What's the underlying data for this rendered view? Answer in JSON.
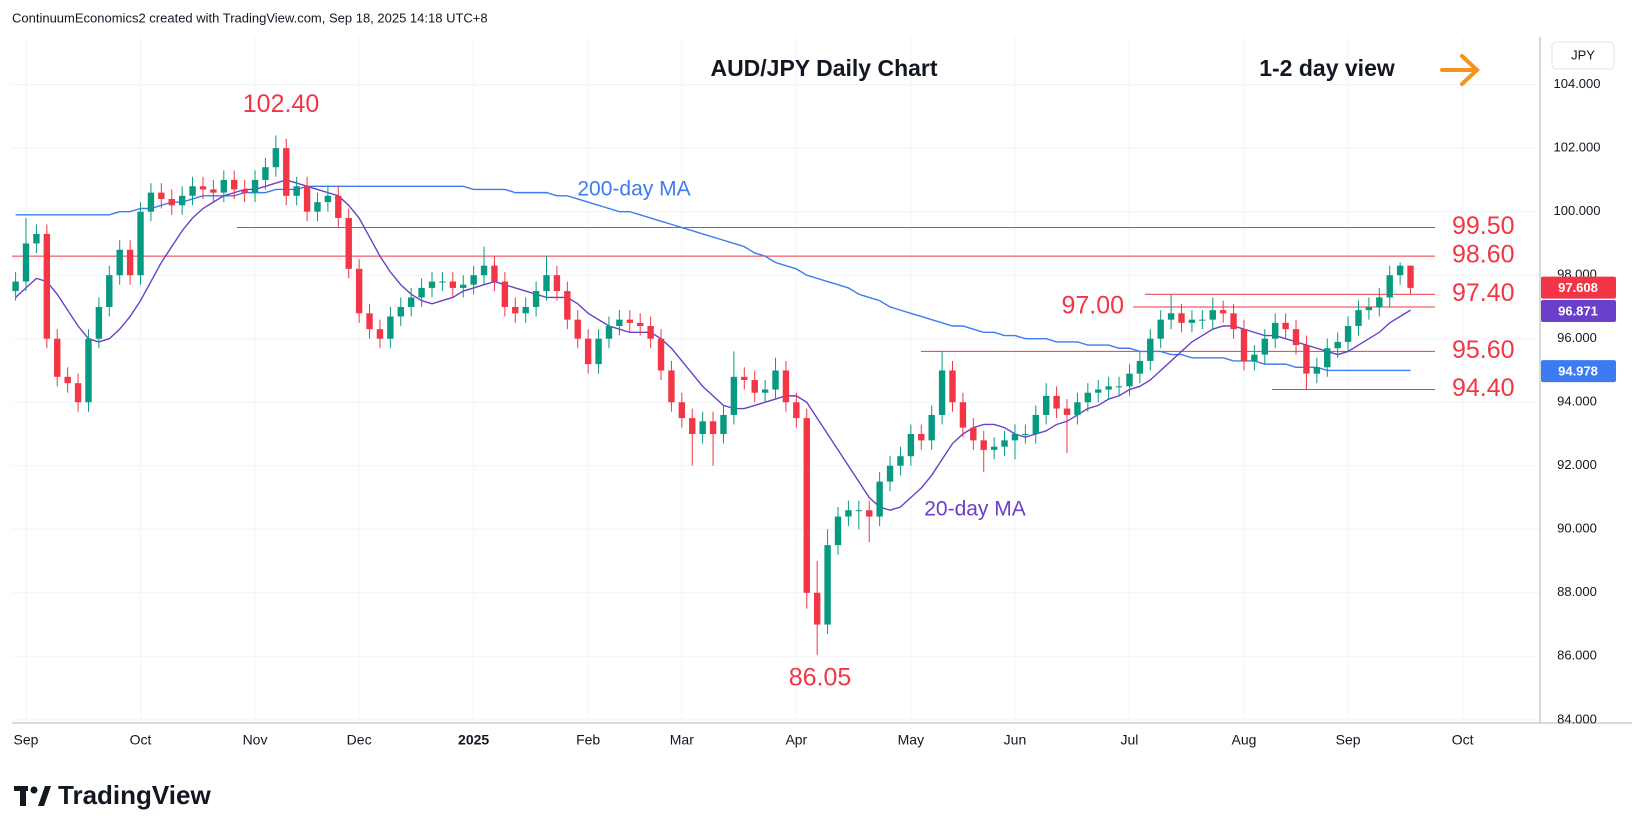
{
  "header": {
    "attribution": "ContinuumEconomics2 created with TradingView.com, Sep 18, 2025 14:18 UTC+8"
  },
  "footer": {
    "brand": "TradingView"
  },
  "chart_data": {
    "type": "candlestick",
    "title": "AUD/JPY Daily Chart",
    "subtitle": "1-2 day view",
    "ylabel": "JPY",
    "up_color": "#089981",
    "down_color": "#f23645",
    "grid": true,
    "ylim": [
      83.9,
      105.5
    ],
    "yticks": [
      {
        "value": 84,
        "label": "84.000"
      },
      {
        "value": 86,
        "label": "86.000"
      },
      {
        "value": 88,
        "label": "88.000"
      },
      {
        "value": 90,
        "label": "90.000"
      },
      {
        "value": 92,
        "label": "92.000"
      },
      {
        "value": 94,
        "label": "94.000"
      },
      {
        "value": 96,
        "label": "96.000"
      },
      {
        "value": 98,
        "label": "98.000"
      },
      {
        "value": 100,
        "label": "100.000"
      },
      {
        "value": 102,
        "label": "102.000"
      },
      {
        "value": 104,
        "label": "104.000"
      }
    ],
    "categories": [
      null,
      "Sep",
      null,
      null,
      null,
      null,
      null,
      null,
      null,
      null,
      null,
      null,
      "Oct",
      null,
      null,
      null,
      null,
      null,
      null,
      null,
      null,
      null,
      null,
      "Nov",
      null,
      null,
      null,
      null,
      null,
      null,
      null,
      null,
      null,
      "Dec",
      null,
      null,
      null,
      null,
      null,
      null,
      null,
      null,
      null,
      null,
      "2025",
      null,
      null,
      null,
      null,
      null,
      null,
      null,
      null,
      null,
      null,
      "Feb",
      null,
      null,
      null,
      null,
      null,
      null,
      null,
      null,
      "Mar",
      null,
      null,
      null,
      null,
      null,
      null,
      null,
      null,
      null,
      null,
      "Apr",
      null,
      null,
      null,
      null,
      null,
      null,
      null,
      null,
      null,
      null,
      "May",
      null,
      null,
      null,
      null,
      null,
      null,
      null,
      null,
      null,
      "Jun",
      null,
      null,
      null,
      null,
      null,
      null,
      null,
      null,
      null,
      null,
      "Jul",
      null,
      null,
      null,
      null,
      null,
      null,
      null,
      null,
      null,
      null,
      "Aug",
      null,
      null,
      null,
      null,
      null,
      null,
      null,
      null,
      null,
      "Sep",
      null,
      null,
      null,
      null,
      null,
      null,
      null,
      null,
      null,
      null,
      "Oct",
      null,
      null,
      null,
      null,
      null,
      null,
      null
    ],
    "open": [
      97.5,
      97.8,
      99.0,
      99.3,
      96.0,
      94.8,
      94.6,
      94.0,
      96.0,
      97.0,
      98.0,
      98.8,
      98.0,
      100.0,
      100.6,
      100.4,
      100.2,
      100.5,
      100.8,
      100.7,
      100.6,
      101.0,
      100.7,
      100.6,
      101.0,
      101.4,
      102.0,
      100.5,
      100.8,
      100.0,
      100.3,
      100.5,
      99.8,
      98.2,
      96.8,
      96.3,
      96.0,
      96.7,
      97.0,
      97.3,
      97.6,
      97.8,
      97.8,
      97.6,
      97.7,
      98.0,
      98.3,
      97.8,
      97.0,
      96.8,
      97.0,
      97.5,
      98.0,
      97.5,
      96.6,
      96.0,
      95.2,
      96.0,
      96.4,
      96.6,
      96.5,
      96.4,
      96.0,
      95.0,
      94.0,
      93.5,
      93.0,
      93.4,
      93.0,
      93.6,
      94.8,
      94.7,
      94.3,
      94.4,
      95.0,
      94.0,
      93.5,
      88.0,
      87.0,
      89.5,
      90.4,
      90.6,
      90.6,
      90.4,
      91.5,
      92.0,
      92.3,
      93.0,
      92.8,
      93.6,
      95.0,
      94.0,
      93.2,
      92.8,
      92.5,
      92.6,
      92.8,
      93.0,
      93.0,
      93.6,
      94.2,
      93.8,
      93.6,
      94.0,
      94.3,
      94.4,
      94.5,
      94.5,
      94.9,
      95.3,
      96.0,
      96.6,
      96.8,
      96.5,
      96.6,
      96.6,
      96.9,
      96.8,
      96.3,
      95.3,
      95.5,
      96.0,
      96.5,
      96.3,
      95.8,
      94.9,
      95.1,
      95.7,
      95.9,
      96.4,
      96.9,
      97.0,
      97.3,
      98.0,
      98.3,
      null,
      null,
      null,
      null,
      null,
      null,
      null,
      null,
      null,
      null,
      null,
      null
    ],
    "high": [
      98.1,
      99.8,
      99.6,
      99.6,
      96.3,
      95.1,
      94.9,
      96.3,
      97.3,
      98.3,
      99.1,
      99.1,
      100.3,
      100.9,
      100.9,
      100.7,
      100.8,
      101.1,
      101.1,
      101.0,
      101.3,
      101.3,
      101.0,
      101.3,
      101.7,
      102.4,
      102.3,
      101.1,
      101.1,
      100.6,
      100.8,
      100.8,
      100.1,
      98.5,
      97.1,
      96.6,
      97.0,
      97.3,
      97.6,
      97.9,
      98.1,
      98.1,
      98.1,
      98.0,
      98.3,
      98.9,
      98.6,
      98.1,
      97.3,
      97.3,
      97.8,
      98.6,
      98.3,
      97.8,
      96.9,
      96.3,
      96.3,
      96.7,
      96.9,
      96.9,
      96.8,
      96.7,
      96.3,
      95.3,
      94.3,
      93.8,
      93.7,
      93.7,
      93.9,
      95.6,
      95.1,
      95.0,
      94.7,
      95.4,
      95.3,
      94.3,
      93.8,
      89.0,
      90.0,
      90.7,
      90.9,
      90.9,
      90.9,
      91.8,
      92.3,
      92.6,
      93.3,
      93.3,
      93.9,
      95.6,
      95.3,
      94.3,
      93.5,
      93.1,
      92.9,
      93.1,
      93.3,
      93.3,
      93.9,
      94.6,
      94.5,
      94.1,
      94.3,
      94.6,
      94.7,
      94.8,
      94.8,
      95.2,
      95.6,
      96.3,
      96.9,
      97.4,
      97.1,
      96.9,
      96.9,
      97.3,
      97.2,
      97.1,
      96.6,
      95.8,
      96.3,
      96.8,
      96.8,
      96.6,
      96.1,
      95.4,
      96.0,
      96.2,
      96.7,
      97.2,
      97.3,
      97.6,
      98.3,
      98.4,
      98.3,
      null,
      null,
      null,
      null,
      null,
      null,
      null,
      null,
      null,
      null,
      null,
      null
    ],
    "low": [
      97.2,
      97.5,
      98.7,
      95.7,
      94.5,
      94.3,
      93.7,
      93.7,
      95.7,
      96.7,
      97.7,
      97.7,
      97.7,
      99.7,
      100.1,
      99.9,
      99.9,
      100.2,
      100.4,
      100.3,
      100.3,
      100.4,
      100.3,
      100.3,
      100.7,
      101.1,
      100.2,
      100.2,
      99.7,
      99.7,
      100.0,
      99.5,
      97.9,
      96.5,
      96.0,
      95.7,
      95.7,
      96.4,
      96.7,
      97.0,
      97.3,
      97.5,
      97.3,
      97.3,
      97.4,
      97.7,
      97.5,
      96.7,
      96.5,
      96.5,
      96.7,
      97.2,
      97.2,
      96.3,
      95.7,
      94.9,
      94.9,
      95.7,
      96.1,
      96.2,
      96.1,
      95.7,
      94.7,
      93.7,
      93.2,
      92.0,
      92.7,
      92.0,
      92.7,
      93.3,
      94.4,
      94.0,
      94.0,
      94.1,
      93.7,
      93.2,
      87.5,
      86.05,
      86.7,
      89.2,
      90.1,
      90.0,
      89.6,
      90.1,
      91.2,
      91.7,
      92.0,
      92.5,
      92.5,
      93.3,
      93.7,
      92.9,
      92.5,
      91.8,
      92.2,
      92.3,
      92.2,
      92.7,
      92.7,
      93.3,
      93.5,
      92.4,
      93.3,
      93.7,
      94.0,
      94.1,
      94.2,
      94.2,
      94.6,
      95.0,
      95.7,
      96.3,
      96.2,
      96.2,
      96.3,
      96.3,
      96.5,
      96.0,
      95.0,
      95.0,
      95.2,
      95.7,
      96.0,
      95.5,
      94.4,
      94.6,
      94.8,
      95.4,
      95.6,
      96.1,
      96.6,
      96.7,
      97.0,
      97.7,
      97.4,
      null,
      null,
      null,
      null,
      null,
      null,
      null,
      null,
      null,
      null,
      null,
      null
    ],
    "close": [
      97.8,
      99.0,
      99.3,
      96.0,
      94.8,
      94.6,
      94.0,
      96.0,
      97.0,
      98.0,
      98.8,
      98.0,
      100.0,
      100.6,
      100.4,
      100.2,
      100.5,
      100.8,
      100.7,
      100.6,
      101.0,
      100.7,
      100.6,
      101.0,
      101.4,
      102.0,
      100.5,
      100.8,
      100.0,
      100.3,
      100.5,
      99.8,
      98.2,
      96.8,
      96.3,
      96.0,
      96.7,
      97.0,
      97.3,
      97.6,
      97.8,
      97.8,
      97.6,
      97.7,
      98.0,
      98.3,
      97.8,
      97.0,
      96.8,
      97.0,
      97.5,
      98.0,
      97.5,
      96.6,
      96.0,
      95.2,
      96.0,
      96.4,
      96.6,
      96.5,
      96.4,
      96.0,
      95.0,
      94.0,
      93.5,
      93.0,
      93.4,
      93.0,
      93.6,
      94.8,
      94.7,
      94.3,
      94.4,
      95.0,
      94.0,
      93.5,
      88.0,
      87.0,
      89.5,
      90.4,
      90.6,
      90.6,
      90.4,
      91.5,
      92.0,
      92.3,
      93.0,
      92.8,
      93.6,
      95.0,
      94.0,
      93.2,
      92.8,
      92.5,
      92.6,
      92.8,
      93.0,
      93.0,
      93.6,
      94.2,
      93.8,
      93.6,
      94.0,
      94.3,
      94.4,
      94.5,
      94.5,
      94.9,
      95.3,
      96.0,
      96.6,
      96.8,
      96.5,
      96.6,
      96.6,
      96.9,
      96.8,
      96.3,
      95.3,
      95.5,
      96.0,
      96.5,
      96.3,
      95.8,
      94.9,
      95.1,
      95.7,
      95.9,
      96.4,
      96.9,
      97.0,
      97.3,
      98.0,
      98.3,
      97.6,
      null,
      null,
      null,
      null,
      null,
      null,
      null,
      null,
      null,
      null,
      null,
      null
    ],
    "lines": [
      {
        "name": "200-day MA",
        "color": "#3d7bf2",
        "values": [
          99.9,
          99.9,
          99.9,
          99.9,
          99.9,
          99.9,
          99.9,
          99.9,
          99.9,
          99.9,
          100.0,
          100.0,
          100.1,
          100.1,
          100.2,
          100.3,
          100.3,
          100.4,
          100.5,
          100.5,
          100.5,
          100.5,
          100.6,
          100.6,
          100.6,
          100.7,
          100.7,
          100.7,
          100.8,
          100.8,
          100.8,
          100.8,
          100.8,
          100.8,
          100.8,
          100.8,
          100.8,
          100.8,
          100.8,
          100.8,
          100.8,
          100.8,
          100.8,
          100.8,
          100.7,
          100.7,
          100.7,
          100.7,
          100.6,
          100.6,
          100.6,
          100.6,
          100.5,
          100.5,
          100.4,
          100.3,
          100.2,
          100.1,
          100.0,
          100.0,
          99.9,
          99.8,
          99.7,
          99.6,
          99.5,
          99.4,
          99.3,
          99.2,
          99.1,
          99.0,
          98.9,
          98.7,
          98.6,
          98.4,
          98.3,
          98.2,
          98.0,
          97.9,
          97.8,
          97.7,
          97.6,
          97.4,
          97.3,
          97.2,
          97.0,
          96.9,
          96.8,
          96.7,
          96.6,
          96.5,
          96.4,
          96.4,
          96.3,
          96.2,
          96.2,
          96.1,
          96.1,
          96.0,
          96.0,
          96.0,
          95.9,
          95.9,
          95.9,
          95.8,
          95.8,
          95.8,
          95.7,
          95.7,
          95.6,
          95.6,
          95.6,
          95.5,
          95.5,
          95.4,
          95.4,
          95.4,
          95.4,
          95.3,
          95.3,
          95.3,
          95.2,
          95.2,
          95.2,
          95.1,
          95.1,
          95.1,
          95.0,
          95.0,
          95.0,
          95.0,
          95.0,
          95.0,
          95.0,
          95.0,
          95.0,
          null,
          null,
          null,
          null,
          null,
          null,
          null,
          null,
          null,
          null,
          null,
          null
        ]
      },
      {
        "name": "20-day MA",
        "color": "#6a3fc9",
        "values": [
          97.3,
          97.6,
          97.9,
          97.8,
          97.4,
          96.9,
          96.4,
          96.0,
          95.9,
          96.0,
          96.3,
          96.7,
          97.2,
          97.8,
          98.4,
          98.9,
          99.4,
          99.8,
          100.1,
          100.3,
          100.5,
          100.6,
          100.7,
          100.7,
          100.8,
          100.9,
          101.0,
          100.9,
          100.8,
          100.7,
          100.6,
          100.5,
          100.2,
          99.8,
          99.2,
          98.6,
          98.1,
          97.7,
          97.4,
          97.2,
          97.1,
          97.2,
          97.3,
          97.5,
          97.6,
          97.7,
          97.8,
          97.7,
          97.6,
          97.5,
          97.4,
          97.3,
          97.3,
          97.3,
          97.1,
          96.8,
          96.6,
          96.4,
          96.3,
          96.2,
          96.2,
          96.2,
          96.0,
          95.7,
          95.3,
          94.9,
          94.5,
          94.2,
          93.9,
          93.8,
          93.8,
          93.9,
          94.0,
          94.1,
          94.2,
          94.2,
          94.0,
          93.5,
          93.0,
          92.5,
          92.0,
          91.5,
          91.0,
          90.7,
          90.6,
          90.7,
          91.0,
          91.3,
          91.7,
          92.2,
          92.7,
          93.0,
          93.2,
          93.3,
          93.3,
          93.2,
          93.0,
          92.9,
          93.0,
          93.1,
          93.3,
          93.4,
          93.6,
          93.8,
          93.9,
          94.1,
          94.2,
          94.4,
          94.5,
          94.7,
          95.0,
          95.3,
          95.6,
          95.9,
          96.1,
          96.3,
          96.4,
          96.4,
          96.3,
          96.2,
          96.1,
          96.1,
          96.0,
          95.9,
          95.8,
          95.7,
          95.6,
          95.5,
          95.6,
          95.8,
          96.0,
          96.2,
          96.5,
          96.7,
          96.9,
          null,
          null,
          null,
          null,
          null,
          null,
          null,
          null,
          null,
          null,
          null,
          null
        ]
      }
    ],
    "levels": [
      {
        "value": 99.5,
        "label": "99.50"
      },
      {
        "value": 98.6,
        "label": "98.60"
      },
      {
        "value": 97.4,
        "label": "97.40"
      },
      {
        "value": 97.0,
        "label": "97.00"
      },
      {
        "value": 95.6,
        "label": "95.60"
      },
      {
        "value": 94.4,
        "label": "94.40"
      }
    ],
    "level_color": "#f23645",
    "annotations": [
      {
        "value": 102.4,
        "label": "102.40"
      },
      {
        "value": 86.05,
        "label": "86.05"
      }
    ],
    "price_tags": [
      {
        "value": 97.608,
        "color": "#f23645"
      },
      {
        "value": 96.871,
        "color": "#6a3fc9"
      },
      {
        "value": 94.978,
        "color": "#3d7bf2"
      }
    ]
  }
}
